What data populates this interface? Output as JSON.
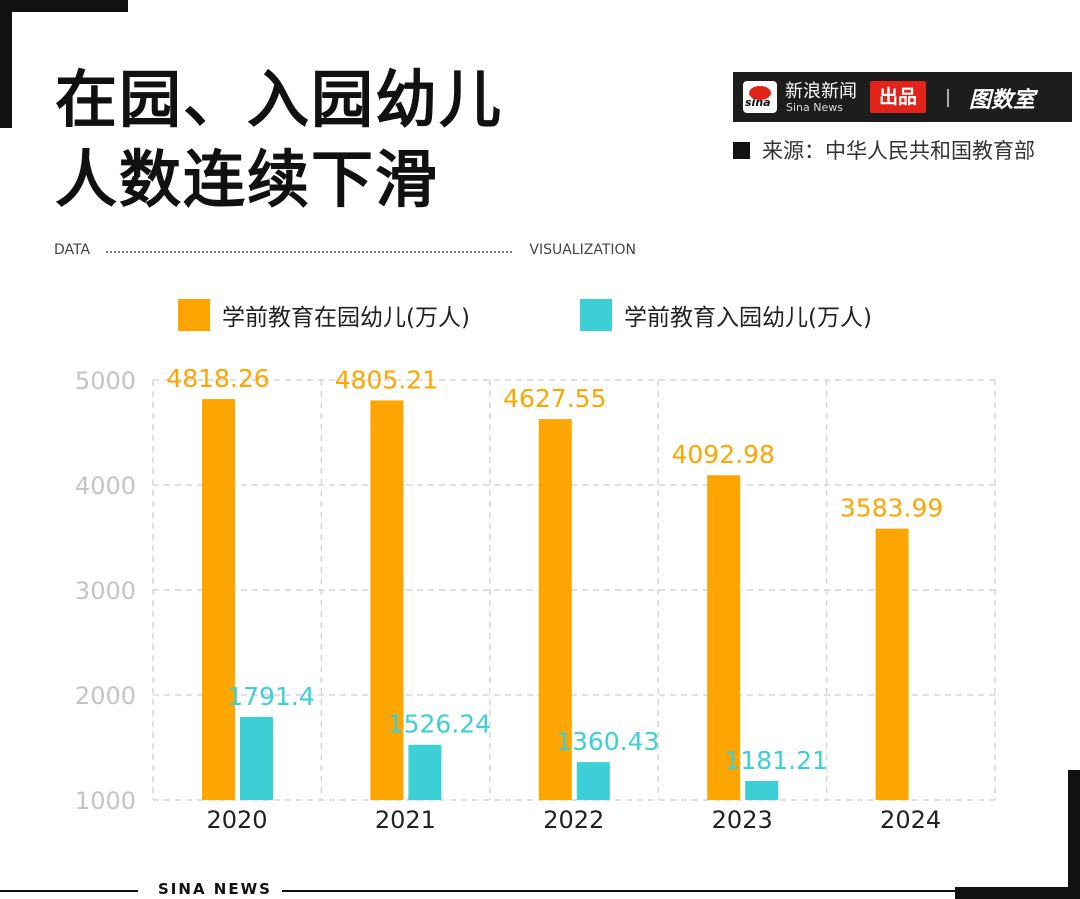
{
  "header": {
    "title_lines": [
      "在园、入园幼儿",
      "人数连续下滑"
    ],
    "data_label": "DATA",
    "visualization_label": "VISUALIZATION"
  },
  "brand": {
    "logo_text": "sina",
    "name_cn": "新浪新闻",
    "name_en": "Sina News",
    "badge": "出品",
    "right_logo": "图数室"
  },
  "source": "来源：中华人民共和国教育部",
  "footer": "SINA NEWS",
  "colors": {
    "enrolled": "#FFA500",
    "new_entrants": "#3DCFD6",
    "grid": "#d6d6d6",
    "axis_text": "#c4c4c4"
  },
  "chart_data": {
    "type": "bar",
    "categories": [
      "2020",
      "2021",
      "2022",
      "2023",
      "2024"
    ],
    "series": [
      {
        "name": "学前教育在园幼儿(万人)",
        "values": [
          4818.26,
          4805.21,
          4627.55,
          4092.98,
          3583.99
        ],
        "labels": [
          "4818.26",
          "4805.21",
          "4627.55",
          "4092.98",
          "3583.99"
        ]
      },
      {
        "name": "学前教育入园幼儿(万人)",
        "values": [
          1791.4,
          1526.24,
          1360.43,
          1181.21,
          null
        ],
        "labels": [
          "1791.4",
          "1526.24",
          "1360.43",
          "1181.21",
          ""
        ]
      }
    ],
    "yticks": [
      "5000",
      "4000",
      "3000",
      "2000",
      "1000"
    ],
    "ylim": [
      1000,
      5000
    ],
    "grid": true,
    "legend_position": "top"
  }
}
